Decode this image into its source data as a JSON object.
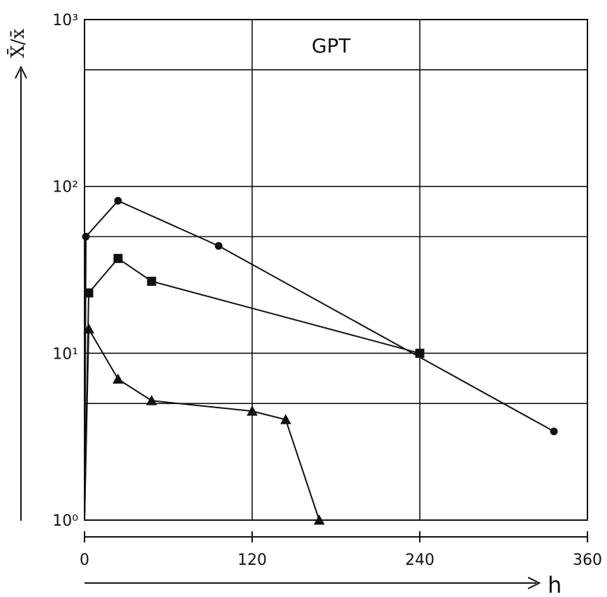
{
  "chart_data": {
    "type": "line",
    "title": "GPT",
    "ylabel": "X̄/x̄",
    "xlabel": "h",
    "x_ticks": [
      "0",
      "120",
      "240",
      "360"
    ],
    "y_ticks": [
      "10⁰",
      "10¹",
      "10²",
      "10³"
    ],
    "xlim": [
      0,
      360
    ],
    "ylim": [
      1,
      1000
    ],
    "y_scale": "log",
    "grid": true,
    "series": [
      {
        "marker": "circle",
        "x": [
          0,
          1,
          24,
          96,
          336
        ],
        "y": [
          1,
          50,
          82,
          44,
          3.4
        ]
      },
      {
        "marker": "square",
        "x": [
          0,
          3,
          24,
          48,
          240
        ],
        "y": [
          1,
          23,
          37,
          27,
          10
        ]
      },
      {
        "marker": "triangle",
        "x": [
          0,
          3,
          24,
          48,
          120,
          144,
          168
        ],
        "y": [
          1,
          14,
          7,
          5.2,
          4.5,
          4,
          1
        ]
      }
    ]
  }
}
